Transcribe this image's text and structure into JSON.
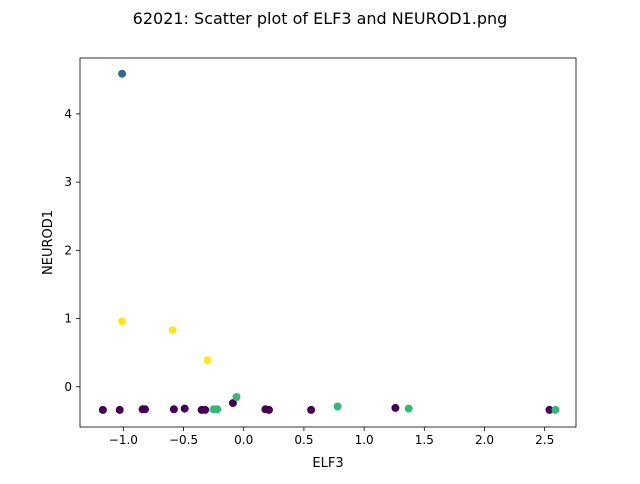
{
  "chart_data": {
    "type": "scatter",
    "title": "62021: Scatter plot of ELF3 and NEUROD1.png",
    "xlabel": "ELF3",
    "ylabel": "NEUROD1",
    "xlim": [
      -1.36,
      2.76
    ],
    "ylim": [
      -0.59,
      4.82
    ],
    "xticks": [
      -1.0,
      -0.5,
      0.0,
      0.5,
      1.0,
      1.5,
      2.0,
      2.5
    ],
    "xtick_labels": [
      "−1.0",
      "−0.5",
      "0.0",
      "0.5",
      "1.0",
      "1.5",
      "2.0",
      "2.5"
    ],
    "yticks": [
      0,
      1,
      2,
      3,
      4
    ],
    "ytick_labels": [
      "0",
      "1",
      "2",
      "3",
      "4"
    ],
    "grid": false,
    "legend": "none",
    "colors": {
      "dark_purple": "#440154",
      "blue": "#31688e",
      "green": "#35b779",
      "yellow": "#fde725"
    },
    "points": [
      {
        "x": -1.01,
        "y": 4.59,
        "color": "#31688e"
      },
      {
        "x": -1.01,
        "y": 0.96,
        "color": "#fde725"
      },
      {
        "x": -0.59,
        "y": 0.83,
        "color": "#fde725"
      },
      {
        "x": -0.3,
        "y": 0.39,
        "color": "#fde725"
      },
      {
        "x": -1.17,
        "y": -0.34,
        "color": "#440154"
      },
      {
        "x": -1.03,
        "y": -0.34,
        "color": "#440154"
      },
      {
        "x": -0.84,
        "y": -0.33,
        "color": "#440154"
      },
      {
        "x": -0.82,
        "y": -0.33,
        "color": "#440154"
      },
      {
        "x": -0.58,
        "y": -0.33,
        "color": "#440154"
      },
      {
        "x": -0.49,
        "y": -0.32,
        "color": "#440154"
      },
      {
        "x": -0.35,
        "y": -0.34,
        "color": "#440154"
      },
      {
        "x": -0.32,
        "y": -0.34,
        "color": "#440154"
      },
      {
        "x": -0.09,
        "y": -0.24,
        "color": "#440154"
      },
      {
        "x": 0.18,
        "y": -0.33,
        "color": "#440154"
      },
      {
        "x": 0.21,
        "y": -0.34,
        "color": "#440154"
      },
      {
        "x": 0.56,
        "y": -0.34,
        "color": "#440154"
      },
      {
        "x": 1.26,
        "y": -0.31,
        "color": "#440154"
      },
      {
        "x": 2.54,
        "y": -0.34,
        "color": "#440154"
      },
      {
        "x": -0.25,
        "y": -0.33,
        "color": "#35b779"
      },
      {
        "x": -0.22,
        "y": -0.33,
        "color": "#35b779"
      },
      {
        "x": -0.06,
        "y": -0.15,
        "color": "#35b779"
      },
      {
        "x": 0.78,
        "y": -0.29,
        "color": "#35b779"
      },
      {
        "x": 1.37,
        "y": -0.32,
        "color": "#35b779"
      },
      {
        "x": 2.59,
        "y": -0.34,
        "color": "#35b779"
      }
    ]
  }
}
